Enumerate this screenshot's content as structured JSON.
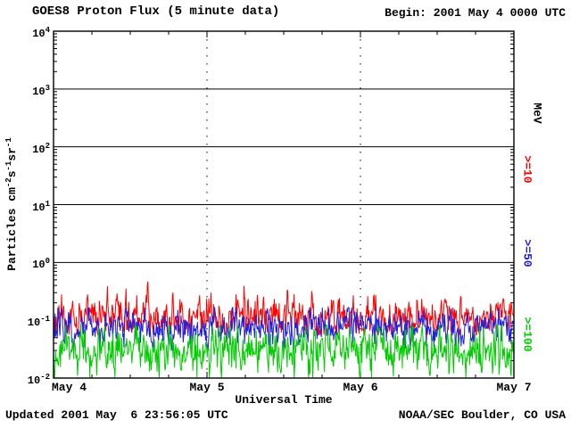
{
  "header": {
    "title": "GOES8 Proton Flux (5 minute data)",
    "begin_label": "Begin: 2001 May 4 0000 UTC"
  },
  "axis": {
    "ylabel_parts": [
      "Particles cm",
      "-2",
      "s",
      "-1",
      "sr",
      "-1"
    ],
    "xlabel": "Universal Time"
  },
  "legend": {
    "unit_label": "MeV",
    "entries": [
      {
        "label": ">=10",
        "color": "#ff0000"
      },
      {
        "label": ">=50",
        "color": "#2020dd"
      },
      {
        "label": ">=100",
        "color": "#00cc00"
      }
    ]
  },
  "footer": {
    "updated": "Updated 2001 May  6 23:56:05 UTC",
    "credit": "NOAA/SEC Boulder, CO USA"
  },
  "chart_data": {
    "type": "line",
    "title": "GOES8 Proton Flux (5 minute data)",
    "xlabel": "Universal Time",
    "ylabel": "Particles cm^-2 s^-1 sr^-1",
    "y_scale": "log",
    "ylim": [
      0.01,
      10000
    ],
    "y_tick_exponents": [
      4,
      3,
      2,
      1,
      0,
      -1,
      -2
    ],
    "x_ticks": [
      "May 4",
      "May 5",
      "May 6",
      "May 7"
    ],
    "x_range": {
      "start": "2001 May 4 0000 UTC",
      "days": 3,
      "cadence_minutes": 5
    },
    "grid": {
      "horizontal_solid_decades": [
        3,
        2,
        1,
        0
      ],
      "vertical_dotted_days": [
        1,
        2
      ]
    },
    "points_per_series": 864,
    "series": [
      {
        "key": "gte10",
        "name": ">=10 MeV",
        "color": "#ff0000",
        "approx_level": 0.12,
        "approx_range": [
          0.06,
          0.45
        ],
        "log10_base": -0.95,
        "log10_std": 0.16,
        "log10_min": -1.25,
        "log10_max": -0.33,
        "spike_prob": 0.015,
        "spike_max": 0.35,
        "seed": 11
      },
      {
        "key": "gte50",
        "name": ">=50 MeV",
        "color": "#2020dd",
        "approx_level": 0.075,
        "approx_range": [
          0.03,
          0.16
        ],
        "log10_base": -1.13,
        "log10_std": 0.15,
        "log10_min": -1.52,
        "log10_max": -0.78,
        "spike_prob": 0.008,
        "spike_max": 0.2,
        "seed": 22
      },
      {
        "key": "gte100",
        "name": ">=100 MeV",
        "color": "#00cc00",
        "approx_level": 0.03,
        "approx_range": [
          0.01,
          0.08
        ],
        "log10_base": -1.55,
        "log10_std": 0.2,
        "log10_min": -1.99,
        "log10_max": -1.08,
        "spike_prob": 0.008,
        "spike_max": 0.2,
        "seed": 33
      }
    ]
  },
  "colors": {
    "background": "#ffffff",
    "frame": "#000000",
    "text": "#000000"
  }
}
